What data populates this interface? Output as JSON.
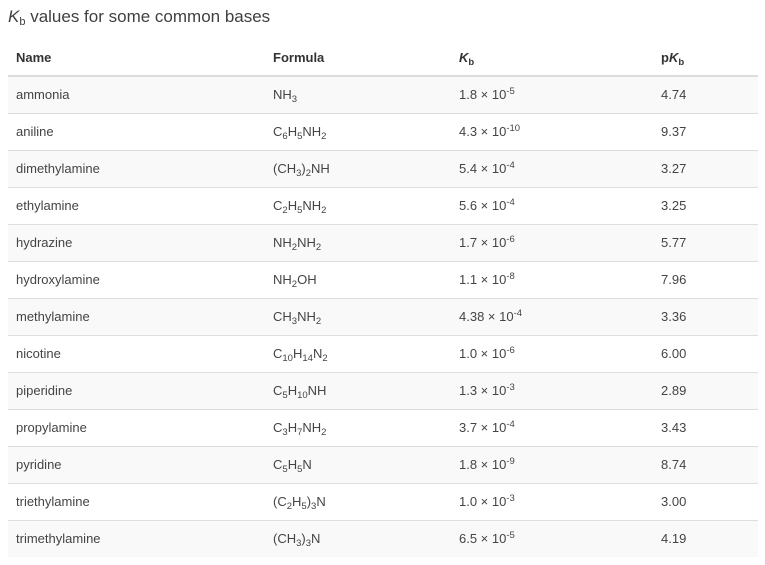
{
  "caption": {
    "k_symbol": "K",
    "k_subscript": "b",
    "rest": " values for some common bases"
  },
  "headers": {
    "name": "Name",
    "formula": "Formula",
    "kb_symbol": "K",
    "kb_subscript": "b",
    "pkb_prefix": "p",
    "pkb_symbol": "K",
    "pkb_subscript": "b"
  },
  "rows": [
    {
      "name": "ammonia",
      "formula": [
        [
          "NH",
          ""
        ],
        [
          "3",
          "sub"
        ]
      ],
      "kb_mantissa": "1.8 × 10",
      "kb_exponent": "-5",
      "pkb": "4.74"
    },
    {
      "name": "aniline",
      "formula": [
        [
          "C",
          ""
        ],
        [
          "6",
          "sub"
        ],
        [
          "H",
          ""
        ],
        [
          "5",
          "sub"
        ],
        [
          "NH",
          ""
        ],
        [
          "2",
          "sub"
        ]
      ],
      "kb_mantissa": "4.3 × 10",
      "kb_exponent": "-10",
      "pkb": "9.37"
    },
    {
      "name": "dimethylamine",
      "formula": [
        [
          "(CH",
          ""
        ],
        [
          "3",
          "sub"
        ],
        [
          ")",
          ""
        ],
        [
          "2",
          "sub"
        ],
        [
          "NH",
          ""
        ]
      ],
      "kb_mantissa": "5.4 × 10",
      "kb_exponent": "-4",
      "pkb": "3.27"
    },
    {
      "name": "ethylamine",
      "formula": [
        [
          "C",
          ""
        ],
        [
          "2",
          "sub"
        ],
        [
          "H",
          ""
        ],
        [
          "5",
          "sub"
        ],
        [
          "NH",
          ""
        ],
        [
          "2",
          "sub"
        ]
      ],
      "kb_mantissa": "5.6 × 10",
      "kb_exponent": "-4",
      "pkb": "3.25"
    },
    {
      "name": "hydrazine",
      "formula": [
        [
          "NH",
          ""
        ],
        [
          "2",
          "sub"
        ],
        [
          "NH",
          ""
        ],
        [
          "2",
          "sub"
        ]
      ],
      "kb_mantissa": "1.7 × 10",
      "kb_exponent": "-6",
      "pkb": "5.77"
    },
    {
      "name": "hydroxylamine",
      "formula": [
        [
          "NH",
          ""
        ],
        [
          "2",
          "sub"
        ],
        [
          "OH",
          ""
        ]
      ],
      "kb_mantissa": "1.1 × 10",
      "kb_exponent": "-8",
      "pkb": "7.96"
    },
    {
      "name": "methylamine",
      "formula": [
        [
          "CH",
          ""
        ],
        [
          "3",
          "sub"
        ],
        [
          "NH",
          ""
        ],
        [
          "2",
          "sub"
        ]
      ],
      "kb_mantissa": "4.38 × 10",
      "kb_exponent": "-4",
      "pkb": "3.36"
    },
    {
      "name": "nicotine",
      "formula": [
        [
          "C",
          ""
        ],
        [
          "10",
          "sub"
        ],
        [
          "H",
          ""
        ],
        [
          "14",
          "sub"
        ],
        [
          "N",
          ""
        ],
        [
          "2",
          "sub"
        ]
      ],
      "kb_mantissa": "1.0 × 10",
      "kb_exponent": "-6",
      "pkb": "6.00"
    },
    {
      "name": "piperidine",
      "formula": [
        [
          "C",
          ""
        ],
        [
          "5",
          "sub"
        ],
        [
          "H",
          ""
        ],
        [
          "10",
          "sub"
        ],
        [
          "NH",
          ""
        ]
      ],
      "kb_mantissa": "1.3 × 10",
      "kb_exponent": "-3",
      "pkb": "2.89"
    },
    {
      "name": "propylamine",
      "formula": [
        [
          "C",
          ""
        ],
        [
          "3",
          "sub"
        ],
        [
          "H",
          ""
        ],
        [
          "7",
          "sub"
        ],
        [
          "NH",
          ""
        ],
        [
          "2",
          "sub"
        ]
      ],
      "kb_mantissa": "3.7 × 10",
      "kb_exponent": "-4",
      "pkb": "3.43"
    },
    {
      "name": "pyridine",
      "formula": [
        [
          "C",
          ""
        ],
        [
          "5",
          "sub"
        ],
        [
          "H",
          ""
        ],
        [
          "5",
          "sub"
        ],
        [
          "N",
          ""
        ]
      ],
      "kb_mantissa": "1.8 × 10",
      "kb_exponent": "-9",
      "pkb": "8.74"
    },
    {
      "name": "triethylamine",
      "formula": [
        [
          "(C",
          ""
        ],
        [
          "2",
          "sub"
        ],
        [
          "H",
          ""
        ],
        [
          "5",
          "sub"
        ],
        [
          ")",
          ""
        ],
        [
          "3",
          "sub"
        ],
        [
          "N",
          ""
        ]
      ],
      "kb_mantissa": "1.0 × 10",
      "kb_exponent": "-3",
      "pkb": "3.00"
    },
    {
      "name": "trimethylamine",
      "formula": [
        [
          "(CH",
          ""
        ],
        [
          "3",
          "sub"
        ],
        [
          ")",
          ""
        ],
        [
          "3",
          "sub"
        ],
        [
          "N",
          ""
        ]
      ],
      "kb_mantissa": "6.5 × 10",
      "kb_exponent": "-5",
      "pkb": "4.19"
    }
  ]
}
